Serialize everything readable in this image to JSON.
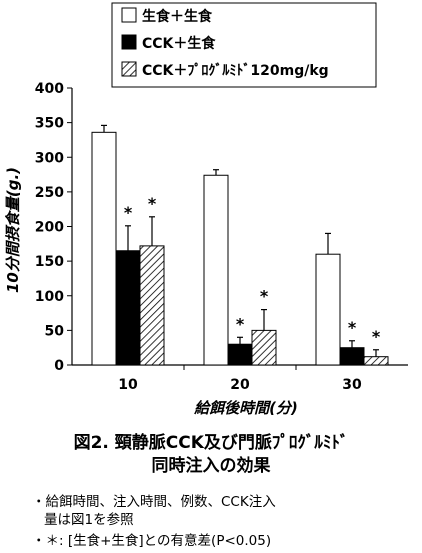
{
  "chart_data": {
    "type": "bar",
    "categories": [
      "10",
      "20",
      "30"
    ],
    "series": [
      {
        "name": "生食＋生食",
        "values": [
          336,
          274,
          160
        ],
        "errors": [
          10,
          8,
          30
        ],
        "pattern": "white"
      },
      {
        "name": "CCK＋生食",
        "values": [
          165,
          30,
          25
        ],
        "errors": [
          36,
          10,
          10
        ],
        "pattern": "black"
      },
      {
        "name": "CCK＋ﾌﾟﾛｸﾞﾙﾐﾄﾞ120mg/kg",
        "values": [
          172,
          50,
          12
        ],
        "errors": [
          42,
          30,
          10
        ],
        "pattern": "hatched"
      }
    ],
    "significance_marks": [
      {
        "category": "10",
        "series": [
          1,
          2
        ]
      },
      {
        "category": "20",
        "series": [
          1,
          2
        ]
      },
      {
        "category": "30",
        "series": [
          1,
          2
        ]
      }
    ],
    "significance_symbol": "＊",
    "ylim": [
      0,
      400
    ],
    "yticks": [
      0,
      50,
      100,
      150,
      200,
      250,
      300,
      350,
      400
    ],
    "ylabel": "10分間摂食量(g.)",
    "xlabel": "給餌後時間(分)",
    "grid": false,
    "legend_position": "top-right"
  },
  "caption": {
    "line1": "図2. 頸静脈CCK及び門脈ﾌﾟﾛｸﾞﾙﾐﾄﾞ",
    "line2": "同時注入の効果"
  },
  "notes": {
    "line1": "・給餌時間、注入時間、例数、CCK注入",
    "line2": "量は図1を参照",
    "line3": "・＊: [生食+生食]との有意差(P<0.05)"
  }
}
